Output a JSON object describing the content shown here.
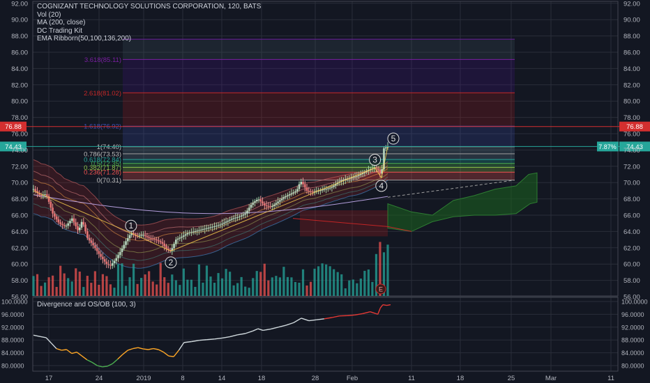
{
  "legend": {
    "symbol": "COGNIZANT TECHNOLOGY SOLUTIONS CORPORATION, 120, BATS",
    "items": [
      "Vol (20)",
      "MA (200, close)",
      "DC Trading Kit",
      "EMA Ribborn(50,100,136,200)"
    ]
  },
  "oscillator": {
    "title": "Divergence and OS/OB (100, 3)"
  },
  "colors": {
    "background": "#131722",
    "grid": "#2a2e39",
    "up": "#26a69a",
    "down": "#ef5350",
    "candle_body": "#b8d7c0",
    "price_tag_red": "#d32f2f",
    "price_tag_green": "#26a69a"
  },
  "chart_data": [
    {
      "type": "candlestick",
      "title": "COGNIZANT TECHNOLOGY SOLUTIONS CORPORATION, 120, BATS",
      "x_ticks": [
        "17",
        "24",
        "2019",
        "8",
        "14",
        "18",
        "28",
        "Feb",
        "11",
        "18",
        "25",
        "Mar",
        "11"
      ],
      "y_ticks": [
        "56.00",
        "58.00",
        "60.00",
        "62.00",
        "64.00",
        "66.00",
        "68.00",
        "70.00",
        "72.00",
        "74.00",
        "76.00",
        "78.00",
        "80.00",
        "82.00",
        "84.00",
        "86.00",
        "88.00",
        "90.00",
        "92.00"
      ],
      "ylim": [
        56,
        92
      ],
      "price_path": [
        [
          0,
          69.2
        ],
        [
          5,
          68.4
        ],
        [
          10,
          68.6
        ],
        [
          15,
          66.2
        ],
        [
          20,
          65.0
        ],
        [
          25,
          64.6
        ],
        [
          30,
          65.6
        ],
        [
          35,
          64.0
        ],
        [
          38,
          65.4
        ],
        [
          42,
          63.2
        ],
        [
          47,
          62.2
        ],
        [
          52,
          61.0
        ],
        [
          57,
          60.0
        ],
        [
          60,
          59.8
        ],
        [
          64,
          60.6
        ],
        [
          68,
          61.6
        ],
        [
          72,
          62.8
        ],
        [
          76,
          63.8
        ],
        [
          80,
          63.4
        ],
        [
          85,
          63.6
        ],
        [
          90,
          63.2
        ],
        [
          95,
          63.0
        ],
        [
          100,
          62.6
        ],
        [
          104,
          61.8
        ],
        [
          107,
          61.6
        ],
        [
          111,
          63.0
        ],
        [
          116,
          63.4
        ],
        [
          120,
          63.8
        ],
        [
          125,
          64.0
        ],
        [
          130,
          64.2
        ],
        [
          135,
          64.4
        ],
        [
          140,
          64.6
        ],
        [
          145,
          64.8
        ],
        [
          150,
          65.2
        ],
        [
          155,
          65.6
        ],
        [
          160,
          65.8
        ],
        [
          165,
          66.2
        ],
        [
          170,
          67.4
        ],
        [
          175,
          68.0
        ],
        [
          180,
          67.2
        ],
        [
          185,
          67.0
        ],
        [
          190,
          67.6
        ],
        [
          195,
          68.2
        ],
        [
          200,
          68.6
        ],
        [
          205,
          69.0
        ],
        [
          208,
          70.2
        ],
        [
          210,
          69.8
        ],
        [
          213,
          69.0
        ],
        [
          217,
          68.8
        ],
        [
          222,
          69.0
        ],
        [
          227,
          69.2
        ],
        [
          232,
          69.4
        ],
        [
          237,
          70.0
        ],
        [
          242,
          70.4
        ],
        [
          247,
          70.6
        ],
        [
          252,
          70.8
        ],
        [
          257,
          71.2
        ],
        [
          262,
          71.6
        ],
        [
          266,
          71.8
        ],
        [
          268,
          71.7
        ],
        [
          271,
          70.8
        ],
        [
          273,
          74.2
        ],
        [
          276,
          74.4
        ]
      ],
      "series": [
        {
          "name": "Vol (20)",
          "type": "bar"
        },
        {
          "name": "MA (200, close)",
          "type": "line"
        },
        {
          "name": "EMA Ribborn(50,100,136,200)",
          "type": "ribbon"
        }
      ],
      "fib_levels": [
        {
          "label": "0(70.31)",
          "value": 70.31,
          "color": "#9e9e9e"
        },
        {
          "label": "0.236(71.28)",
          "value": 71.28,
          "color": "#ef5350"
        },
        {
          "label": "0.382(71.87)",
          "value": 71.87,
          "color": "#8bc34a"
        },
        {
          "label": "0.5(72.35)",
          "value": 72.35,
          "color": "#4caf50"
        },
        {
          "label": "0.618(72.84)",
          "value": 72.84,
          "color": "#26a69a"
        },
        {
          "label": "0.786(73.53)",
          "value": 73.53,
          "color": "#9e9e9e"
        },
        {
          "label": "1(74.40)",
          "value": 74.4,
          "color": "#9e9e9e"
        },
        {
          "label": "1.618(76.92)",
          "value": 76.92,
          "color": "#3f51b5"
        },
        {
          "label": "2.618(81.02)",
          "value": 81.02,
          "color": "#c62828"
        },
        {
          "label": "3.618(85.11)",
          "value": 85.11,
          "color": "#7b1fa2"
        }
      ],
      "fib_top": 87.6,
      "horizontal_lines": [
        {
          "label": "76.88",
          "value": 76.88,
          "color": "#d32f2f"
        },
        {
          "label": "74.43",
          "value": 74.43,
          "color": "#26a69a"
        }
      ],
      "change_label": "7.87%",
      "wave_labels": [
        {
          "label": "1",
          "x": 76,
          "price": 64.7
        },
        {
          "label": "2",
          "x": 107,
          "price": 60.2
        },
        {
          "label": "3",
          "x": 266,
          "price": 72.8
        },
        {
          "label": "4",
          "x": 271,
          "price": 69.6
        },
        {
          "label": "5",
          "x": 276,
          "price": 75.4
        }
      ],
      "earnings_label": "E"
    },
    {
      "type": "line",
      "title": "Divergence and OS/OB (100, 3)",
      "y_ticks": [
        "80.0000",
        "84.0000",
        "88.0000",
        "92.0000",
        "96.0000",
        "100.0000"
      ],
      "ylim": [
        78.5,
        100.5
      ],
      "values": [
        [
          0,
          89.5
        ],
        [
          6,
          89.0
        ],
        [
          10,
          88.7
        ],
        [
          14,
          87.0
        ],
        [
          18,
          85.3
        ],
        [
          22,
          84.8
        ],
        [
          26,
          85.0
        ],
        [
          30,
          83.8
        ],
        [
          34,
          84.2
        ],
        [
          38,
          83.0
        ],
        [
          42,
          81.8
        ],
        [
          46,
          81.0
        ],
        [
          50,
          80.0
        ],
        [
          54,
          79.6
        ],
        [
          58,
          79.8
        ],
        [
          62,
          80.6
        ],
        [
          66,
          82.0
        ],
        [
          70,
          83.5
        ],
        [
          74,
          84.8
        ],
        [
          78,
          85.3
        ],
        [
          82,
          85.6
        ],
        [
          86,
          85.2
        ],
        [
          90,
          85.0
        ],
        [
          94,
          85.3
        ],
        [
          98,
          85.0
        ],
        [
          102,
          84.2
        ],
        [
          106,
          83.0
        ],
        [
          110,
          82.8
        ],
        [
          114,
          84.8
        ],
        [
          118,
          87.2
        ],
        [
          124,
          87.5
        ],
        [
          130,
          87.9
        ],
        [
          136,
          88.1
        ],
        [
          142,
          88.3
        ],
        [
          148,
          88.6
        ],
        [
          154,
          89.0
        ],
        [
          160,
          89.6
        ],
        [
          166,
          90.0
        ],
        [
          172,
          90.8
        ],
        [
          176,
          91.5
        ],
        [
          180,
          91.0
        ],
        [
          186,
          91.4
        ],
        [
          192,
          92.0
        ],
        [
          198,
          92.6
        ],
        [
          204,
          93.4
        ],
        [
          210,
          94.8
        ],
        [
          216,
          94.0
        ],
        [
          222,
          94.3
        ],
        [
          228,
          94.6
        ],
        [
          234,
          95.0
        ],
        [
          240,
          95.5
        ],
        [
          246,
          95.6
        ],
        [
          252,
          95.8
        ],
        [
          258,
          96.2
        ],
        [
          264,
          96.8
        ],
        [
          268,
          96.3
        ],
        [
          270,
          96.0
        ],
        [
          272,
          98.0
        ],
        [
          274,
          99.0
        ],
        [
          277,
          98.8
        ],
        [
          280,
          99.0
        ]
      ]
    }
  ]
}
